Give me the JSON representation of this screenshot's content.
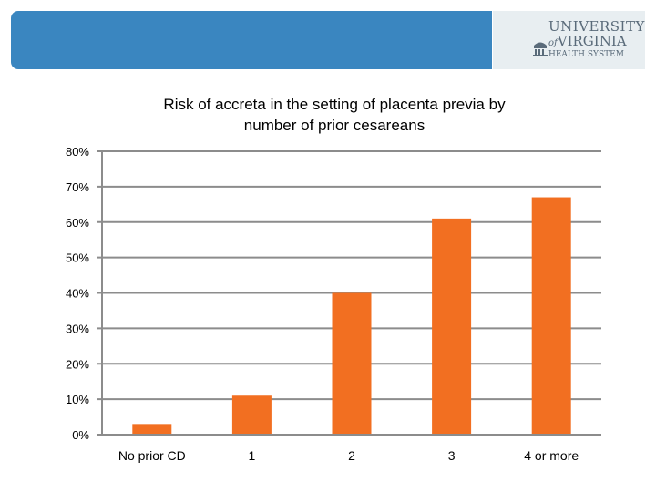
{
  "header": {
    "logo_line1": "UNIVERSITY",
    "logo_line2_prefix": "of",
    "logo_line2": "VIRGINIA",
    "logo_line3": "HEALTH SYSTEM"
  },
  "colors": {
    "banner": "#3a86c0",
    "bar": "#f26f21",
    "grid": "#8c8c8c"
  },
  "chart_data": {
    "type": "bar",
    "title": "Risk of accreta in the setting of placenta previa by number of prior cesareans",
    "title_line1": "Risk of accreta in the setting of placenta previa by",
    "title_line2": "number of prior cesareans",
    "categories": [
      "No prior CD",
      "1",
      "2",
      "3",
      "4 or more"
    ],
    "values": [
      3,
      11,
      40,
      61,
      67
    ],
    "ylim": [
      0,
      80
    ],
    "yticks": [
      0,
      10,
      20,
      30,
      40,
      50,
      60,
      70,
      80
    ],
    "ytick_labels": [
      "0%",
      "10%",
      "20%",
      "30%",
      "40%",
      "50%",
      "60%",
      "70%",
      "80%"
    ],
    "xlabel": "",
    "ylabel": "",
    "grid": true,
    "legend": "none"
  }
}
